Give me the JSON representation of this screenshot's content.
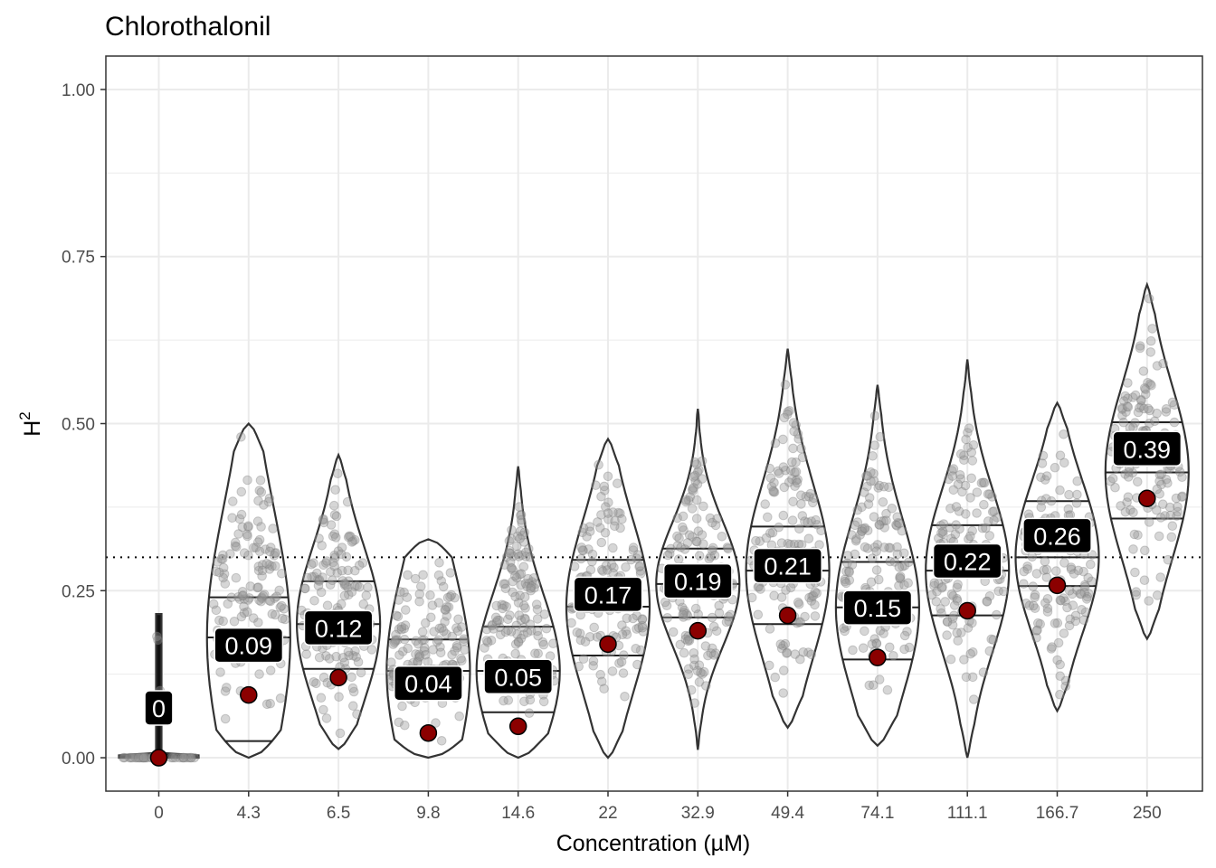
{
  "chart_data": {
    "type": "violin",
    "title": "Chlorothalonil",
    "xlabel": "Concentration (µM)",
    "ylabel": "H",
    "ylabel_superscript": "2",
    "ylim": [
      -0.05,
      1.05
    ],
    "yticks": [
      "0.00",
      "0.25",
      "0.50",
      "0.75",
      "1.00"
    ],
    "threshold_line": 0.3,
    "categories": [
      "0",
      "4.3",
      "6.5",
      "9.8",
      "14.6",
      "22",
      "32.9",
      "49.4",
      "74.1",
      "111.1",
      "166.7",
      "250"
    ],
    "mean_values": [
      0.0,
      0.094,
      0.12,
      0.037,
      0.047,
      0.17,
      0.19,
      0.213,
      0.15,
      0.22,
      0.258,
      0.388
    ],
    "mean_labels": [
      "0",
      "0.09",
      "0.12",
      "0.04",
      "0.05",
      "0.17",
      "0.19",
      "0.21",
      "0.15",
      "0.22",
      "0.26",
      "0.39"
    ],
    "min_values": [
      0.0,
      0.0,
      0.013,
      0.0,
      0.0,
      0.0,
      0.012,
      0.045,
      0.018,
      0.0,
      0.07,
      0.178
    ],
    "max_values": [
      0.215,
      0.5,
      0.453,
      0.327,
      0.436,
      0.477,
      0.522,
      0.612,
      0.558,
      0.596,
      0.531,
      0.708
    ],
    "quartiles": [
      [
        0.0,
        0.0,
        0.0
      ],
      [
        0.025,
        0.18,
        0.24
      ],
      [
        0.133,
        0.2,
        0.264
      ],
      [
        0.0,
        0.13,
        0.177
      ],
      [
        0.068,
        0.13,
        0.196
      ],
      [
        0.153,
        0.226,
        0.296
      ],
      [
        0.21,
        0.26,
        0.313
      ],
      [
        0.2,
        0.28,
        0.346
      ],
      [
        0.147,
        0.225,
        0.293
      ],
      [
        0.213,
        0.28,
        0.348
      ],
      [
        0.257,
        0.3,
        0.384
      ],
      [
        0.358,
        0.427,
        0.502
      ]
    ]
  },
  "colors": {
    "mean_point": "#8b0000",
    "jitter_point": "#999999",
    "violin_outline": "#333333",
    "label_bg": "#000000",
    "grid": "#ebebeb"
  }
}
